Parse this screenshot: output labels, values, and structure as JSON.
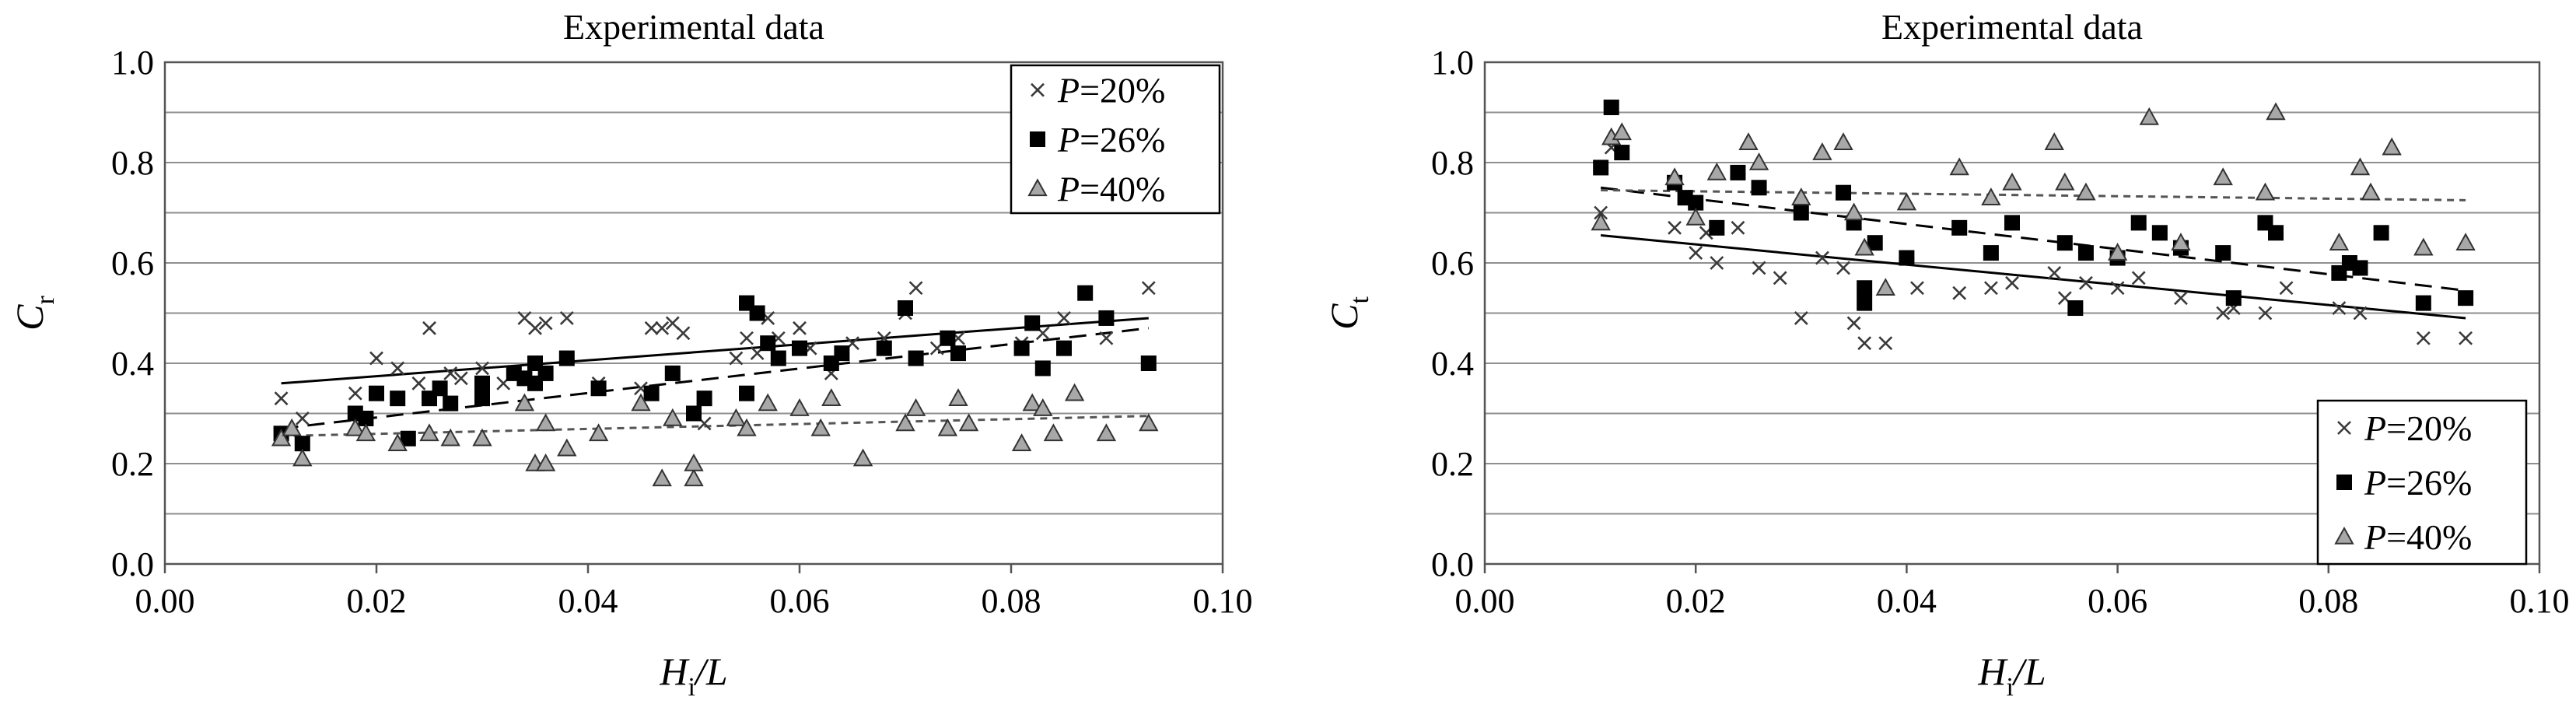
{
  "chart_data": [
    {
      "type": "scatter",
      "title": "Experimental data",
      "ylabel": {
        "main": "C",
        "sub": "r"
      },
      "xlabel": {
        "main": "H",
        "sub": "i",
        "rest": "/L"
      },
      "xlim": [
        0,
        0.1
      ],
      "ylim": [
        0,
        1.0
      ],
      "x_ticks": [
        "0.00",
        "0.02",
        "0.04",
        "0.06",
        "0.08",
        "0.10"
      ],
      "y_ticks": [
        "0.0",
        "0.2",
        "0.4",
        "0.6",
        "0.8",
        "1.0"
      ],
      "grid": true,
      "legend_position": "top-right",
      "series": [
        {
          "name": "P=20%",
          "marker": "x",
          "line": "solid",
          "trend": [
            [
              0.011,
              0.36
            ],
            [
              0.093,
              0.49
            ]
          ],
          "points": [
            [
              0.011,
              0.33
            ],
            [
              0.013,
              0.29
            ],
            [
              0.018,
              0.34
            ],
            [
              0.02,
              0.41
            ],
            [
              0.022,
              0.39
            ],
            [
              0.024,
              0.36
            ],
            [
              0.025,
              0.47
            ],
            [
              0.027,
              0.38
            ],
            [
              0.028,
              0.37
            ],
            [
              0.03,
              0.39
            ],
            [
              0.032,
              0.36
            ],
            [
              0.034,
              0.49
            ],
            [
              0.035,
              0.47
            ],
            [
              0.036,
              0.48
            ],
            [
              0.036,
              0.38
            ],
            [
              0.038,
              0.49
            ],
            [
              0.041,
              0.36
            ],
            [
              0.045,
              0.35
            ],
            [
              0.046,
              0.47
            ],
            [
              0.047,
              0.47
            ],
            [
              0.048,
              0.48
            ],
            [
              0.049,
              0.46
            ],
            [
              0.05,
              0.3
            ],
            [
              0.051,
              0.28
            ],
            [
              0.054,
              0.41
            ],
            [
              0.055,
              0.45
            ],
            [
              0.056,
              0.42
            ],
            [
              0.057,
              0.49
            ],
            [
              0.058,
              0.45
            ],
            [
              0.06,
              0.47
            ],
            [
              0.061,
              0.43
            ],
            [
              0.063,
              0.38
            ],
            [
              0.065,
              0.44
            ],
            [
              0.068,
              0.45
            ],
            [
              0.07,
              0.5
            ],
            [
              0.071,
              0.55
            ],
            [
              0.073,
              0.43
            ],
            [
              0.075,
              0.45
            ],
            [
              0.081,
              0.44
            ],
            [
              0.083,
              0.46
            ],
            [
              0.085,
              0.49
            ],
            [
              0.089,
              0.45
            ],
            [
              0.093,
              0.55
            ]
          ]
        },
        {
          "name": "P=26%",
          "marker": "square",
          "line": "dashed",
          "trend": [
            [
              0.011,
              0.27
            ],
            [
              0.093,
              0.47
            ]
          ],
          "points": [
            [
              0.011,
              0.26
            ],
            [
              0.013,
              0.24
            ],
            [
              0.018,
              0.3
            ],
            [
              0.019,
              0.29
            ],
            [
              0.02,
              0.34
            ],
            [
              0.022,
              0.33
            ],
            [
              0.023,
              0.25
            ],
            [
              0.025,
              0.33
            ],
            [
              0.026,
              0.35
            ],
            [
              0.027,
              0.32
            ],
            [
              0.03,
              0.36
            ],
            [
              0.03,
              0.33
            ],
            [
              0.033,
              0.38
            ],
            [
              0.034,
              0.37
            ],
            [
              0.035,
              0.36
            ],
            [
              0.035,
              0.4
            ],
            [
              0.036,
              0.38
            ],
            [
              0.038,
              0.41
            ],
            [
              0.041,
              0.35
            ],
            [
              0.046,
              0.34
            ],
            [
              0.048,
              0.38
            ],
            [
              0.05,
              0.3
            ],
            [
              0.051,
              0.33
            ],
            [
              0.055,
              0.34
            ],
            [
              0.055,
              0.52
            ],
            [
              0.056,
              0.5
            ],
            [
              0.057,
              0.44
            ],
            [
              0.058,
              0.41
            ],
            [
              0.06,
              0.43
            ],
            [
              0.063,
              0.4
            ],
            [
              0.064,
              0.42
            ],
            [
              0.068,
              0.43
            ],
            [
              0.07,
              0.51
            ],
            [
              0.071,
              0.41
            ],
            [
              0.074,
              0.45
            ],
            [
              0.075,
              0.42
            ],
            [
              0.081,
              0.43
            ],
            [
              0.082,
              0.48
            ],
            [
              0.083,
              0.39
            ],
            [
              0.085,
              0.43
            ],
            [
              0.087,
              0.54
            ],
            [
              0.089,
              0.49
            ],
            [
              0.093,
              0.4
            ]
          ]
        },
        {
          "name": "P=40%",
          "marker": "triangle",
          "line": "dotted",
          "trend": [
            [
              0.011,
              0.255
            ],
            [
              0.093,
              0.295
            ]
          ],
          "points": [
            [
              0.011,
              0.25
            ],
            [
              0.012,
              0.27
            ],
            [
              0.013,
              0.21
            ],
            [
              0.018,
              0.27
            ],
            [
              0.019,
              0.26
            ],
            [
              0.022,
              0.24
            ],
            [
              0.025,
              0.26
            ],
            [
              0.027,
              0.25
            ],
            [
              0.03,
              0.25
            ],
            [
              0.034,
              0.32
            ],
            [
              0.035,
              0.2
            ],
            [
              0.036,
              0.28
            ],
            [
              0.036,
              0.2
            ],
            [
              0.038,
              0.23
            ],
            [
              0.041,
              0.26
            ],
            [
              0.045,
              0.32
            ],
            [
              0.047,
              0.17
            ],
            [
              0.048,
              0.29
            ],
            [
              0.05,
              0.17
            ],
            [
              0.05,
              0.2
            ],
            [
              0.054,
              0.29
            ],
            [
              0.055,
              0.27
            ],
            [
              0.057,
              0.32
            ],
            [
              0.06,
              0.31
            ],
            [
              0.062,
              0.27
            ],
            [
              0.063,
              0.33
            ],
            [
              0.066,
              0.21
            ],
            [
              0.07,
              0.28
            ],
            [
              0.071,
              0.31
            ],
            [
              0.074,
              0.27
            ],
            [
              0.075,
              0.33
            ],
            [
              0.076,
              0.28
            ],
            [
              0.081,
              0.24
            ],
            [
              0.082,
              0.32
            ],
            [
              0.083,
              0.31
            ],
            [
              0.084,
              0.26
            ],
            [
              0.086,
              0.34
            ],
            [
              0.089,
              0.26
            ],
            [
              0.093,
              0.28
            ]
          ]
        }
      ]
    },
    {
      "type": "scatter",
      "title": "Experimental data",
      "ylabel": {
        "main": "C",
        "sub": "t"
      },
      "xlabel": {
        "main": "H",
        "sub": "i",
        "rest": "/L"
      },
      "xlim": [
        0,
        0.1
      ],
      "ylim": [
        0,
        1.0
      ],
      "x_ticks": [
        "0.00",
        "0.02",
        "0.04",
        "0.06",
        "0.08",
        "0.10"
      ],
      "y_ticks": [
        "0.0",
        "0.2",
        "0.4",
        "0.6",
        "0.8",
        "1.0"
      ],
      "grid": true,
      "legend_position": "bottom-right",
      "series": [
        {
          "name": "P=20%",
          "marker": "x",
          "line": "solid",
          "trend": [
            [
              0.011,
              0.655
            ],
            [
              0.093,
              0.49
            ]
          ],
          "points": [
            [
              0.011,
              0.7
            ],
            [
              0.012,
              0.83
            ],
            [
              0.018,
              0.67
            ],
            [
              0.02,
              0.62
            ],
            [
              0.021,
              0.66
            ],
            [
              0.022,
              0.6
            ],
            [
              0.024,
              0.67
            ],
            [
              0.026,
              0.59
            ],
            [
              0.028,
              0.57
            ],
            [
              0.03,
              0.49
            ],
            [
              0.032,
              0.61
            ],
            [
              0.034,
              0.59
            ],
            [
              0.035,
              0.48
            ],
            [
              0.036,
              0.44
            ],
            [
              0.038,
              0.44
            ],
            [
              0.041,
              0.55
            ],
            [
              0.045,
              0.54
            ],
            [
              0.048,
              0.55
            ],
            [
              0.05,
              0.56
            ],
            [
              0.054,
              0.58
            ],
            [
              0.055,
              0.53
            ],
            [
              0.057,
              0.56
            ],
            [
              0.06,
              0.55
            ],
            [
              0.062,
              0.57
            ],
            [
              0.066,
              0.53
            ],
            [
              0.07,
              0.5
            ],
            [
              0.071,
              0.51
            ],
            [
              0.074,
              0.5
            ],
            [
              0.076,
              0.55
            ],
            [
              0.081,
              0.51
            ],
            [
              0.083,
              0.5
            ],
            [
              0.089,
              0.45
            ],
            [
              0.093,
              0.45
            ]
          ]
        },
        {
          "name": "P=26%",
          "marker": "square",
          "line": "dashed",
          "trend": [
            [
              0.011,
              0.75
            ],
            [
              0.093,
              0.545
            ]
          ],
          "points": [
            [
              0.011,
              0.79
            ],
            [
              0.012,
              0.91
            ],
            [
              0.013,
              0.82
            ],
            [
              0.018,
              0.76
            ],
            [
              0.019,
              0.73
            ],
            [
              0.02,
              0.72
            ],
            [
              0.022,
              0.67
            ],
            [
              0.024,
              0.78
            ],
            [
              0.026,
              0.75
            ],
            [
              0.03,
              0.7
            ],
            [
              0.034,
              0.74
            ],
            [
              0.035,
              0.68
            ],
            [
              0.036,
              0.52
            ],
            [
              0.036,
              0.55
            ],
            [
              0.037,
              0.64
            ],
            [
              0.04,
              0.61
            ],
            [
              0.045,
              0.67
            ],
            [
              0.048,
              0.62
            ],
            [
              0.05,
              0.68
            ],
            [
              0.055,
              0.64
            ],
            [
              0.056,
              0.51
            ],
            [
              0.057,
              0.62
            ],
            [
              0.06,
              0.61
            ],
            [
              0.062,
              0.68
            ],
            [
              0.064,
              0.66
            ],
            [
              0.066,
              0.63
            ],
            [
              0.07,
              0.62
            ],
            [
              0.071,
              0.53
            ],
            [
              0.074,
              0.68
            ],
            [
              0.075,
              0.66
            ],
            [
              0.081,
              0.58
            ],
            [
              0.082,
              0.6
            ],
            [
              0.083,
              0.59
            ],
            [
              0.085,
              0.66
            ],
            [
              0.089,
              0.52
            ],
            [
              0.093,
              0.53
            ]
          ]
        },
        {
          "name": "P=40%",
          "marker": "triangle",
          "line": "dotted",
          "trend": [
            [
              0.011,
              0.745
            ],
            [
              0.093,
              0.725
            ]
          ],
          "points": [
            [
              0.011,
              0.68
            ],
            [
              0.012,
              0.85
            ],
            [
              0.013,
              0.86
            ],
            [
              0.018,
              0.77
            ],
            [
              0.02,
              0.69
            ],
            [
              0.022,
              0.78
            ],
            [
              0.025,
              0.84
            ],
            [
              0.026,
              0.8
            ],
            [
              0.03,
              0.73
            ],
            [
              0.032,
              0.82
            ],
            [
              0.034,
              0.84
            ],
            [
              0.035,
              0.7
            ],
            [
              0.036,
              0.63
            ],
            [
              0.038,
              0.55
            ],
            [
              0.04,
              0.72
            ],
            [
              0.045,
              0.79
            ],
            [
              0.048,
              0.73
            ],
            [
              0.05,
              0.76
            ],
            [
              0.054,
              0.84
            ],
            [
              0.055,
              0.76
            ],
            [
              0.057,
              0.74
            ],
            [
              0.06,
              0.62
            ],
            [
              0.063,
              0.89
            ],
            [
              0.066,
              0.64
            ],
            [
              0.07,
              0.77
            ],
            [
              0.074,
              0.74
            ],
            [
              0.075,
              0.9
            ],
            [
              0.081,
              0.64
            ],
            [
              0.083,
              0.79
            ],
            [
              0.084,
              0.74
            ],
            [
              0.086,
              0.83
            ],
            [
              0.089,
              0.63
            ],
            [
              0.093,
              0.64
            ]
          ]
        }
      ]
    }
  ]
}
